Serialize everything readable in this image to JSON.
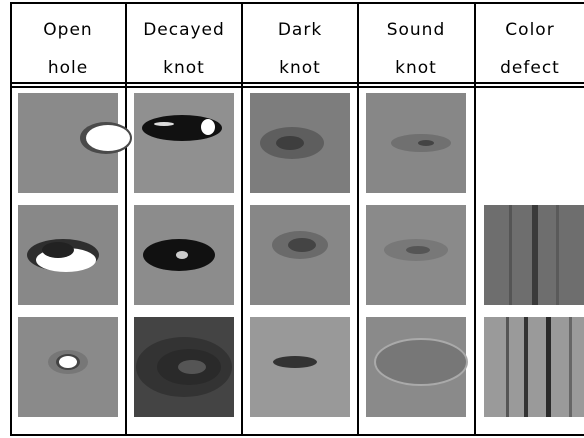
{
  "header": {
    "columns": [
      [
        "Open",
        "hole"
      ],
      [
        "Decayed",
        "knot"
      ],
      [
        "Dark",
        "knot"
      ],
      [
        "Sound",
        "knot"
      ],
      [
        "Color",
        "defect"
      ]
    ]
  }
}
